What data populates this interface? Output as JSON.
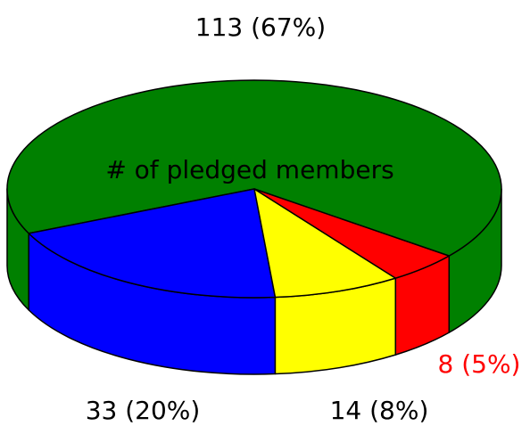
{
  "chart_data": {
    "type": "pie3d",
    "title": "# of pledged members",
    "values": [
      113,
      33,
      14,
      8
    ],
    "value_labels": [
      "113 (67%)",
      "33 (20%)",
      "14 (8%)",
      "8 (5%)"
    ],
    "colors": [
      "#008000",
      "#0000ff",
      "#ffff00",
      "#ff0000"
    ]
  }
}
